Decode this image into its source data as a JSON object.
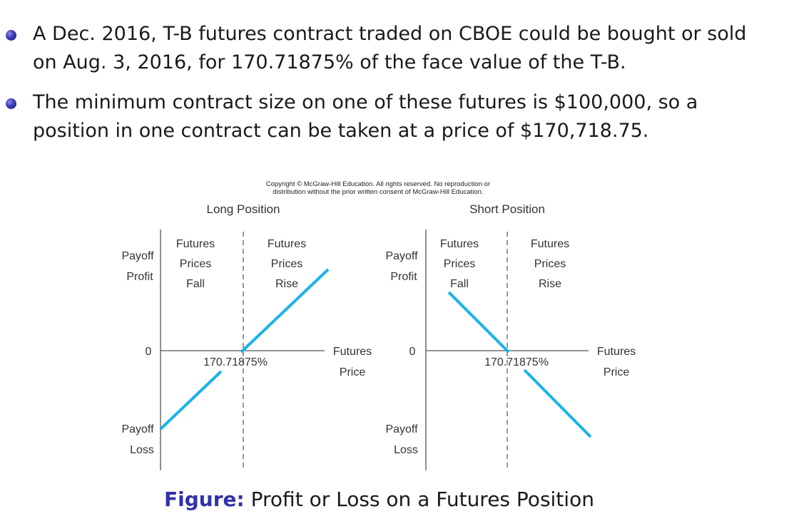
{
  "bullets": [
    {
      "line1": "A Dec. 2016, T-B futures contract traded on CBOE could be bought or sold",
      "line2": "on Aug. 3, 2016, for 170.71875% of the face value of the T-B."
    },
    {
      "line1": "The minimum contract size on one of these futures is $100,000, so a",
      "line2": "position in one contract can be taken at a price of $170,718.75."
    }
  ],
  "copyright": {
    "line1": "Copyright © McGraw-Hill Education.  All rights reserved. No reproduction or",
    "line2": "distribution without the prior written consent of McGraw-Hill Education."
  },
  "colors": {
    "payoff_line": "#1ab2ea",
    "bullet": "#3a3ab4",
    "caption_prefix": "#3232a8"
  },
  "long_panel": {
    "title": "Long Position",
    "y_top": [
      "Payoff",
      "Profit"
    ],
    "y_zero": "0",
    "y_bottom": [
      "Payoff",
      "Loss"
    ],
    "left_region": [
      "Futures",
      "Prices",
      "Fall"
    ],
    "right_region": [
      "Futures",
      "Prices",
      "Rise"
    ],
    "x_axis": [
      "Futures",
      "Price"
    ],
    "breakeven": "170.71875%"
  },
  "short_panel": {
    "title": "Short Position",
    "y_top": [
      "Payoff",
      "Profit"
    ],
    "y_zero": "0",
    "y_bottom": [
      "Payoff",
      "Loss"
    ],
    "left_region": [
      "Futures",
      "Prices",
      "Fall"
    ],
    "right_region": [
      "Futures",
      "Prices",
      "Rise"
    ],
    "x_axis": [
      "Futures",
      "Price"
    ],
    "breakeven": "170.71875%"
  },
  "caption": {
    "prefix": "Figure:",
    "text": " Profit or Loss on a Futures Position"
  }
}
